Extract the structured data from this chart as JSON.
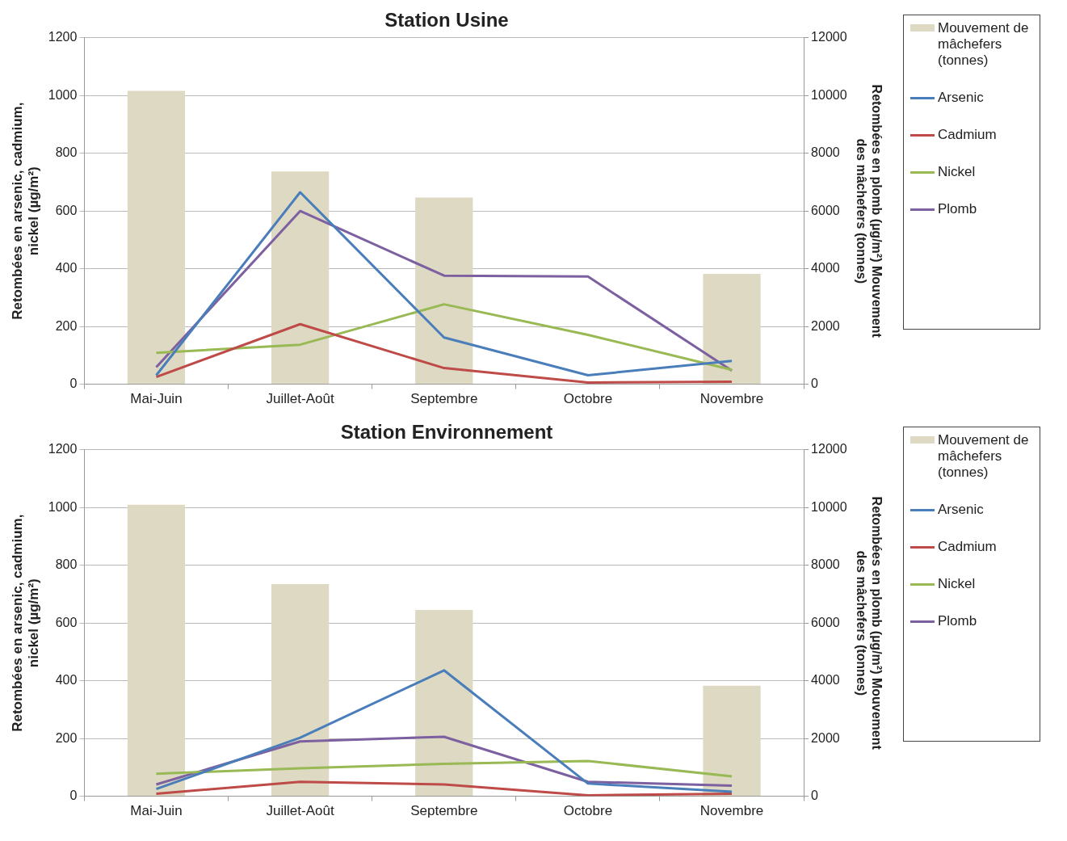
{
  "chart_data": [
    {
      "type": "line",
      "title": "Station Usine",
      "categories": [
        "Mai-Juin",
        "Juillet-Août",
        "Septembre",
        "Octobre",
        "Novembre"
      ],
      "ylabel": "Retombées en arsenic, cadmium, nickel (µg/m²)",
      "y2label": "Retombées en plomb (µg/m²) Mouvement des mâchefers (tonnes)",
      "ylim": [
        0,
        1200
      ],
      "yticks": [
        0,
        200,
        400,
        600,
        800,
        1000,
        1200
      ],
      "y2lim": [
        0,
        12000
      ],
      "y2ticks": [
        0,
        2000,
        4000,
        6000,
        8000,
        10000,
        12000
      ],
      "grid": "y",
      "legend": "right",
      "series": [
        {
          "name": "Mouvement de mâchefers (tonnes)",
          "type": "bar",
          "axis": "y2",
          "color": "#ddd9c3",
          "values": [
            10160,
            7370,
            6470,
            null,
            3820
          ]
        },
        {
          "name": "Arsenic",
          "color": "#4a7ebb",
          "values": [
            31,
            665,
            162,
            31,
            81
          ]
        },
        {
          "name": "Cadmium",
          "color": "#be4b48",
          "values": [
            25,
            208,
            56,
            6,
            9
          ]
        },
        {
          "name": "Nickel",
          "color": "#98b954",
          "values": [
            109,
            137,
            277,
            171,
            50
          ]
        },
        {
          "name": "Plomb",
          "axis": "y2",
          "color": "#7d60a0",
          "values": [
            590,
            6000,
            3760,
            3730,
            470
          ]
        }
      ]
    },
    {
      "type": "line",
      "title": "Station Environnement",
      "categories": [
        "Mai-Juin",
        "Juillet-Août",
        "Septembre",
        "Octobre",
        "Novembre"
      ],
      "ylabel": "Retombées en arsenic, cadmium, nickel (µg/m²)",
      "y2label": "Retombées en plomb (µg/m²) Mouvement des mâchefers (tonnes)",
      "ylim": [
        0,
        1200
      ],
      "yticks": [
        0,
        200,
        400,
        600,
        800,
        1000,
        1200
      ],
      "y2lim": [
        0,
        12000
      ],
      "y2ticks": [
        0,
        2000,
        4000,
        6000,
        8000,
        10000,
        12000
      ],
      "grid": "y",
      "legend": "right",
      "series": [
        {
          "name": "Mouvement de mâchefers (tonnes)",
          "type": "bar",
          "axis": "y2",
          "color": "#ddd9c3",
          "values": [
            10100,
            7350,
            6450,
            null,
            3830
          ]
        },
        {
          "name": "Arsenic",
          "color": "#4a7ebb",
          "values": [
            25,
            203,
            436,
            44,
            16
          ]
        },
        {
          "name": "Cadmium",
          "color": "#be4b48",
          "values": [
            9,
            50,
            41,
            3,
            9
          ]
        },
        {
          "name": "Nickel",
          "color": "#98b954",
          "values": [
            78,
            97,
            112,
            122,
            69
          ]
        },
        {
          "name": "Plomb",
          "axis": "y2",
          "color": "#7d60a0",
          "values": [
            410,
            1900,
            2060,
            500,
            370
          ]
        }
      ]
    }
  ]
}
